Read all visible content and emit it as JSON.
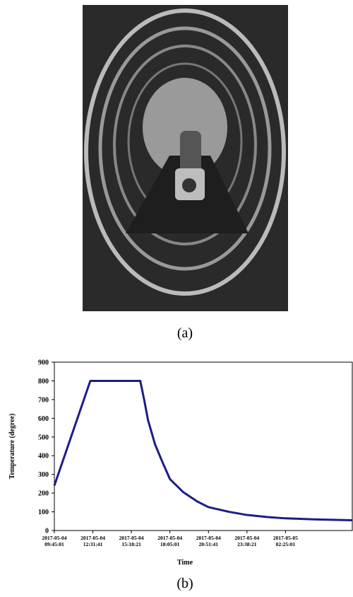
{
  "figure": {
    "photo_caption": "(a)",
    "chart_caption": "(b)"
  },
  "chart_data": {
    "type": "line",
    "ylabel": "Temperature (degree)",
    "xlabel": "Time",
    "x": [
      "2017-05-04 09:45:01",
      "2017-05-04 12:20:30",
      "2017-05-04 15:56:40",
      "2017-05-04 16:15:01",
      "2017-05-04 16:30:15",
      "2017-05-04 17:00:44",
      "2017-05-04 17:31:12",
      "2017-05-04 18:05:01",
      "2017-05-04 19:02:36",
      "2017-05-04 20:03:32",
      "2017-05-04 20:51:41",
      "2017-05-04 22:20:39",
      "2017-05-04 23:38:21",
      "2017-05-05 01:08:14",
      "2017-05-05 02:25:01",
      "2017-05-05 04:41:31",
      "2017-05-05 07:13:52"
    ],
    "values": [
      240,
      800,
      800,
      690,
      590,
      460,
      370,
      275,
      205,
      155,
      125,
      100,
      83,
      72,
      65,
      59,
      55
    ],
    "color": "#1c1c8a",
    "xlim": [
      "2017-05-04 09:45:01",
      "2017-05-05 07:14:00"
    ],
    "xticks": [
      {
        "value": "2017-05-04 09:45:01",
        "label": [
          "2017-05-04",
          "09:45:01"
        ]
      },
      {
        "value": "2017-05-04 12:31:41",
        "label": [
          "2017-05-04",
          "12:31:41"
        ]
      },
      {
        "value": "2017-05-04 15:18:21",
        "label": [
          "2017-05-04",
          "15:18:21"
        ]
      },
      {
        "value": "2017-05-04 18:05:01",
        "label": [
          "2017-05-04",
          "18:05:01"
        ]
      },
      {
        "value": "2017-05-04 20:51:41",
        "label": [
          "2017-05-04",
          "20:51:41"
        ]
      },
      {
        "value": "2017-05-04 23:38:21",
        "label": [
          "2017-05-04",
          "23:38:21"
        ]
      },
      {
        "value": "2017-05-05 02:25:01",
        "label": [
          "2017-05-05",
          "02:25:01"
        ]
      }
    ],
    "ylim": [
      0,
      900
    ],
    "yticks": [
      0,
      100,
      200,
      300,
      400,
      500,
      600,
      700,
      800,
      900
    ]
  }
}
